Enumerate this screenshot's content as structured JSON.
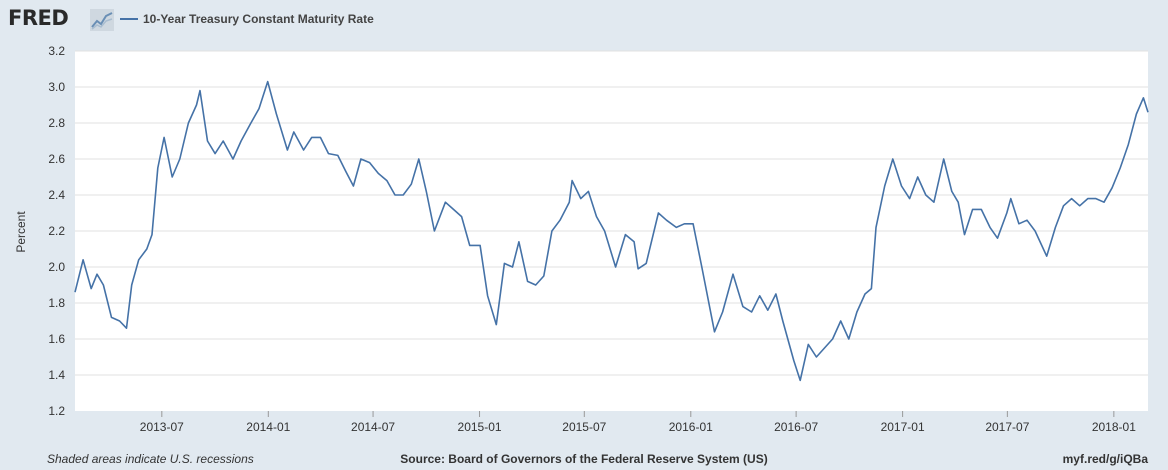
{
  "header": {
    "logo_text": "FRED",
    "logo_icon": "line-graph-icon"
  },
  "footer": {
    "recessions_note": "Shaded areas indicate U.S. recessions",
    "source": "Source: Board of Governors of the Federal Reserve System (US)",
    "url": "myf.red/g/iQBa"
  },
  "colors": {
    "background": "#e1e9f0",
    "plot_background": "#ffffff",
    "series_line": "#4572a7",
    "grid": "#e1e1e1"
  },
  "chart_data": {
    "type": "line",
    "title": "",
    "xlabel": "",
    "ylabel": "Percent",
    "ylim": [
      1.2,
      3.2
    ],
    "xlim": [
      "2013-02-01",
      "2018-03-01"
    ],
    "yticks": [
      1.2,
      1.4,
      1.6,
      1.8,
      2.0,
      2.2,
      2.4,
      2.6,
      2.8,
      3.0,
      3.2
    ],
    "ytick_labels": [
      "1.2",
      "1.4",
      "1.6",
      "1.8",
      "2.0",
      "2.2",
      "2.4",
      "2.6",
      "2.8",
      "3.0",
      "3.2"
    ],
    "xticks": [
      "2013-07-01",
      "2014-01-01",
      "2014-07-01",
      "2015-01-01",
      "2015-07-01",
      "2016-01-01",
      "2016-07-01",
      "2017-01-01",
      "2017-07-01",
      "2018-01-01"
    ],
    "xtick_labels": [
      "2013-07",
      "2014-01",
      "2014-07",
      "2015-01",
      "2015-07",
      "2016-01",
      "2016-07",
      "2017-01",
      "2017-07",
      "2018-01"
    ],
    "grid": true,
    "legend": "top-left",
    "series": [
      {
        "name": "10-Year Treasury Constant Maturity Rate",
        "x": [
          "2013-02-01",
          "2013-02-15",
          "2013-03-01",
          "2013-03-11",
          "2013-03-22",
          "2013-04-05",
          "2013-04-19",
          "2013-05-01",
          "2013-05-10",
          "2013-05-22",
          "2013-06-05",
          "2013-06-14",
          "2013-06-24",
          "2013-07-05",
          "2013-07-19",
          "2013-08-01",
          "2013-08-16",
          "2013-08-30",
          "2013-09-05",
          "2013-09-18",
          "2013-10-01",
          "2013-10-15",
          "2013-11-01",
          "2013-11-15",
          "2013-12-02",
          "2013-12-16",
          "2013-12-31",
          "2014-01-15",
          "2014-02-03",
          "2014-02-14",
          "2014-03-03",
          "2014-03-17",
          "2014-04-01",
          "2014-04-15",
          "2014-05-01",
          "2014-05-15",
          "2014-05-28",
          "2014-06-10",
          "2014-06-25",
          "2014-07-10",
          "2014-07-25",
          "2014-08-08",
          "2014-08-22",
          "2014-09-05",
          "2014-09-18",
          "2014-10-01",
          "2014-10-15",
          "2014-11-03",
          "2014-11-17",
          "2014-12-01",
          "2014-12-15",
          "2015-01-02",
          "2015-01-15",
          "2015-01-30",
          "2015-02-13",
          "2015-02-27",
          "2015-03-10",
          "2015-03-25",
          "2015-04-08",
          "2015-04-22",
          "2015-05-06",
          "2015-05-20",
          "2015-06-05",
          "2015-06-10",
          "2015-06-25",
          "2015-07-08",
          "2015-07-22",
          "2015-08-05",
          "2015-08-24",
          "2015-09-10",
          "2015-09-25",
          "2015-10-02",
          "2015-10-16",
          "2015-11-06",
          "2015-11-20",
          "2015-12-07",
          "2015-12-21",
          "2016-01-05",
          "2016-01-20",
          "2016-02-11",
          "2016-02-25",
          "2016-03-14",
          "2016-03-31",
          "2016-04-15",
          "2016-04-29",
          "2016-05-13",
          "2016-05-27",
          "2016-06-08",
          "2016-06-27",
          "2016-07-08",
          "2016-07-22",
          "2016-08-05",
          "2016-08-19",
          "2016-09-02",
          "2016-09-16",
          "2016-09-30",
          "2016-10-14",
          "2016-10-28",
          "2016-11-08",
          "2016-11-16",
          "2016-12-01",
          "2016-12-15",
          "2016-12-30",
          "2017-01-13",
          "2017-01-27",
          "2017-02-10",
          "2017-02-24",
          "2017-03-13",
          "2017-03-27",
          "2017-04-07",
          "2017-04-18",
          "2017-05-02",
          "2017-05-17",
          "2017-06-01",
          "2017-06-14",
          "2017-06-30",
          "2017-07-07",
          "2017-07-21",
          "2017-08-04",
          "2017-08-18",
          "2017-09-07",
          "2017-09-22",
          "2017-10-06",
          "2017-10-20",
          "2017-11-03",
          "2017-11-17",
          "2017-12-01",
          "2017-12-15",
          "2017-12-29",
          "2018-01-12",
          "2018-01-26",
          "2018-02-09",
          "2018-02-21",
          "2018-03-01"
        ],
        "values": [
          1.86,
          2.04,
          1.88,
          1.96,
          1.9,
          1.72,
          1.7,
          1.66,
          1.9,
          2.04,
          2.1,
          2.18,
          2.55,
          2.72,
          2.5,
          2.6,
          2.8,
          2.9,
          2.98,
          2.7,
          2.63,
          2.7,
          2.6,
          2.7,
          2.8,
          2.88,
          3.03,
          2.85,
          2.65,
          2.75,
          2.65,
          2.72,
          2.72,
          2.63,
          2.62,
          2.53,
          2.45,
          2.6,
          2.58,
          2.52,
          2.48,
          2.4,
          2.4,
          2.46,
          2.6,
          2.42,
          2.2,
          2.36,
          2.32,
          2.28,
          2.12,
          2.12,
          1.84,
          1.68,
          2.02,
          2.0,
          2.14,
          1.92,
          1.9,
          1.95,
          2.2,
          2.26,
          2.36,
          2.48,
          2.38,
          2.42,
          2.28,
          2.2,
          2.0,
          2.18,
          2.14,
          1.99,
          2.02,
          2.3,
          2.26,
          2.22,
          2.24,
          2.24,
          2.0,
          1.64,
          1.75,
          1.96,
          1.78,
          1.75,
          1.84,
          1.76,
          1.85,
          1.7,
          1.48,
          1.37,
          1.57,
          1.5,
          1.55,
          1.6,
          1.7,
          1.6,
          1.75,
          1.85,
          1.88,
          2.22,
          2.45,
          2.6,
          2.45,
          2.38,
          2.5,
          2.4,
          2.36,
          2.6,
          2.42,
          2.36,
          2.18,
          2.32,
          2.32,
          2.22,
          2.16,
          2.3,
          2.38,
          2.24,
          2.26,
          2.2,
          2.06,
          2.22,
          2.34,
          2.38,
          2.34,
          2.38,
          2.38,
          2.36,
          2.44,
          2.55,
          2.68,
          2.85,
          2.94,
          2.86
        ]
      }
    ]
  }
}
